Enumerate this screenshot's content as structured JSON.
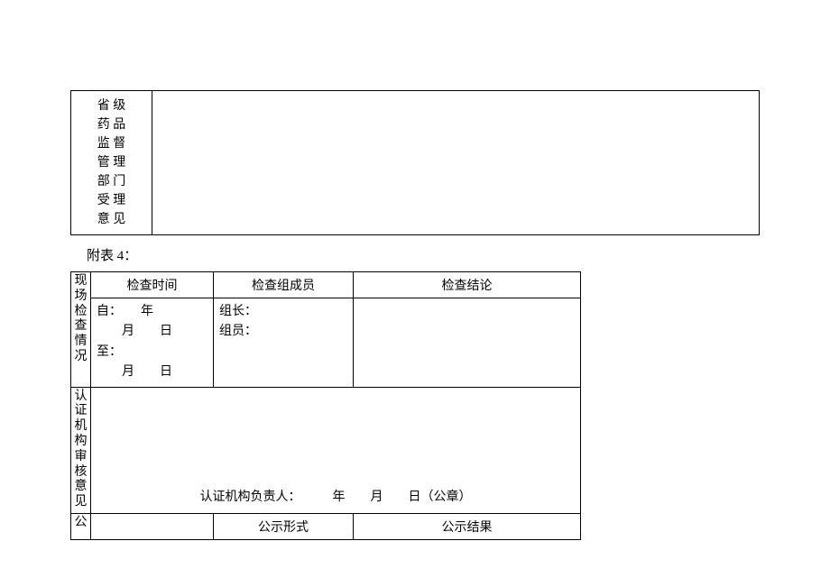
{
  "table1": {
    "label": "省 级\n药 品\n监 督\n管 理\n部 门\n受 理\n意 见"
  },
  "caption": "附表 4：",
  "table2": {
    "row_inspect": {
      "label": "现场检查情况",
      "header_time": "检查时间",
      "header_members": "检查组成员",
      "header_conclusion": "检查结论",
      "time_content": "自：　　年\n　　月　　日\n至：\n　　月　　日",
      "members_content": "组长：\n组员："
    },
    "row_review": {
      "label": "认证机构审核意见",
      "signature": "认证机构负责人：　　　年　　月　　日（公章）"
    },
    "row_public": {
      "label": "公",
      "header_form": "公示形式",
      "header_result": "公示结果"
    }
  }
}
